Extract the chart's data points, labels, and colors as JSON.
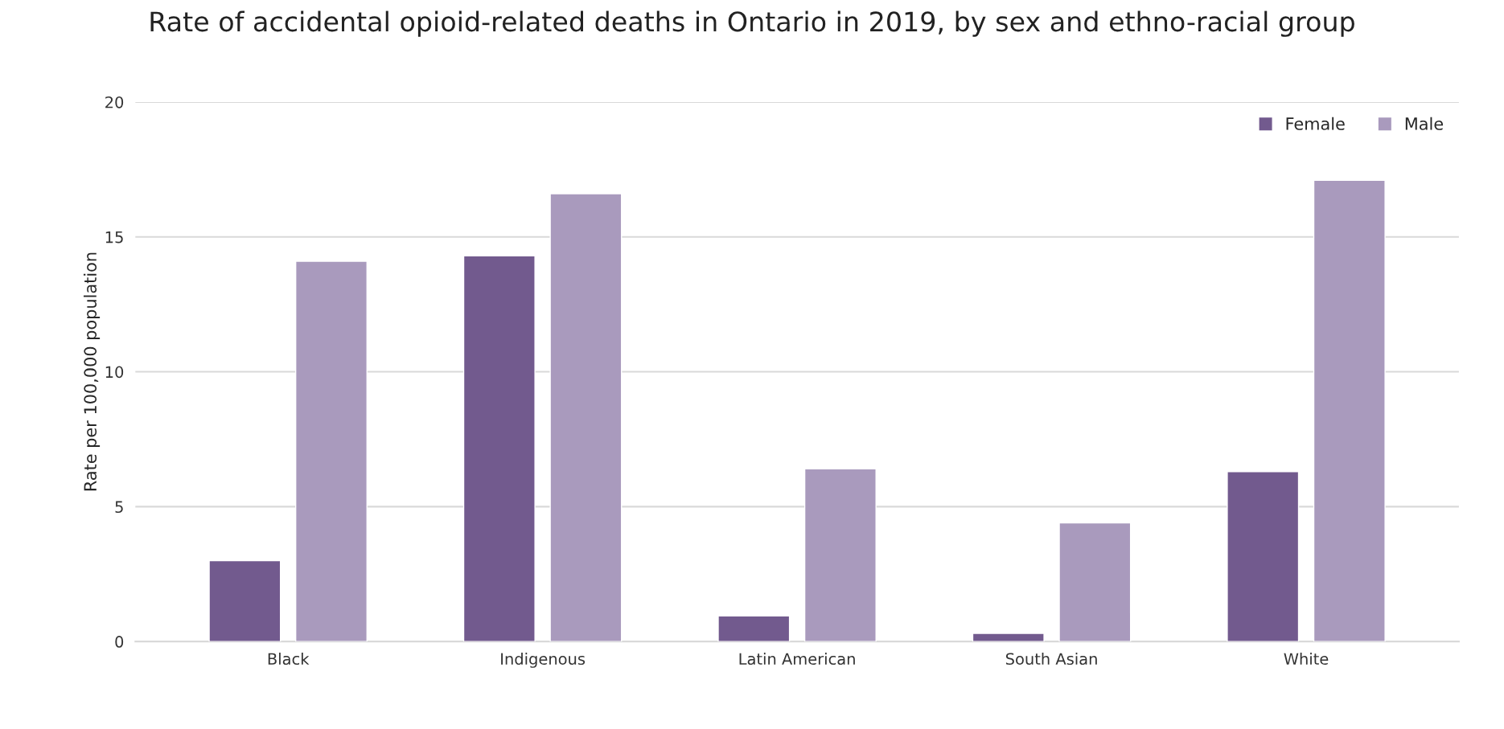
{
  "chart_data": {
    "type": "bar",
    "title": "Rate of accidental opioid-related deaths in Ontario in 2019, by sex and ethno-racial group",
    "ylabel": "Rate per 100,000 population",
    "categories": [
      "Black",
      "Indigenous",
      "Latin American",
      "South Asian",
      "White"
    ],
    "series": [
      {
        "name": "Female",
        "color": "#725a8e",
        "values": [
          3.0,
          14.3,
          0.95,
          0.3,
          6.3
        ]
      },
      {
        "name": "Male",
        "color": "#a99abd",
        "values": [
          14.1,
          16.6,
          6.4,
          4.4,
          17.1
        ]
      }
    ],
    "ylim": [
      0,
      20
    ],
    "yticks": [
      0,
      5,
      10,
      15,
      20
    ],
    "grid": "y",
    "legend": "top right"
  }
}
